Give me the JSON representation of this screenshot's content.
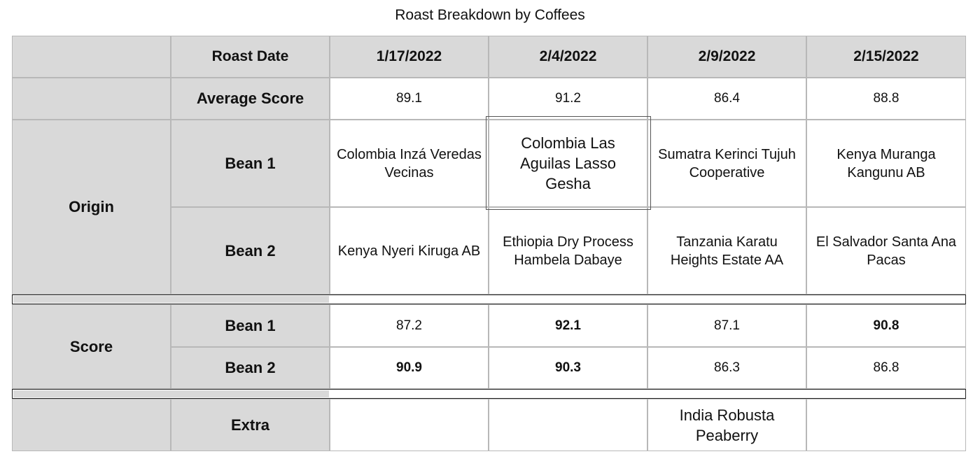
{
  "title": "Roast Breakdown by Coffees",
  "chart_data": {
    "type": "table",
    "columns": [
      "Roast Date",
      "1/17/2022",
      "2/4/2022",
      "2/9/2022",
      "2/15/2022"
    ],
    "groups": {
      "average_score": {
        "label": "Average Score",
        "values": [
          "89.1",
          "91.2",
          "86.4",
          "88.8"
        ]
      },
      "origin": {
        "label": "Origin",
        "bean1": {
          "label": "Bean 1",
          "values": [
            "Colombia Inzá Veredas Vecinas",
            "Colombia Las Aguilas Lasso Gesha",
            "Sumatra Kerinci Tujuh Cooperative",
            "Kenya Muranga Kangunu AB"
          ]
        },
        "bean2": {
          "label": "Bean 2",
          "values": [
            "Kenya Nyeri Kiruga AB",
            "Ethiopia Dry Process Hambela Dabaye",
            "Tanzania Karatu Heights Estate AA",
            "El Salvador Santa Ana Pacas"
          ]
        }
      },
      "score": {
        "label": "Score",
        "bean1": {
          "label": "Bean 1",
          "values": [
            "87.2",
            "92.1",
            "87.1",
            "90.8"
          ]
        },
        "bean2": {
          "label": "Bean 2",
          "values": [
            "90.9",
            "90.3",
            "86.3",
            "86.8"
          ]
        }
      },
      "extra": {
        "label": "Extra",
        "values": [
          "",
          "",
          "India Robusta Peaberry",
          ""
        ]
      }
    },
    "bold_cells": [
      "score.bean1.2/4/2022",
      "score.bean1.2/15/2022",
      "score.bean2.1/17/2022",
      "score.bean2.2/4/2022"
    ],
    "highlighted_cell": "origin.bean1.2/4/2022"
  }
}
